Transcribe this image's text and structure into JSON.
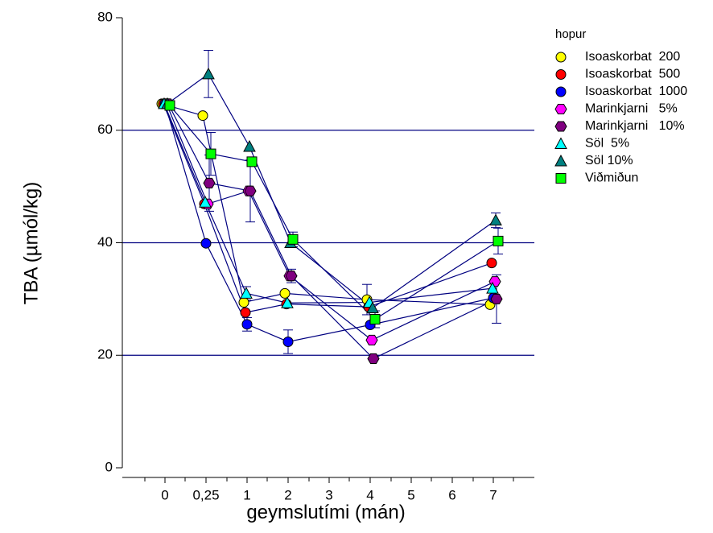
{
  "chart_data": {
    "type": "scatter",
    "xlabel": "geymslutími (mán)",
    "ylabel": "TBA (µmól/kg)",
    "ylim": [
      0,
      80
    ],
    "y_ticks": [
      0,
      20,
      40,
      60,
      80
    ],
    "grid_y": [
      20,
      40,
      60
    ],
    "x_tick_labels": [
      "0",
      "0,25",
      "1",
      "2",
      "3",
      "4",
      "5",
      "6",
      "7"
    ],
    "legend_title": "hopur",
    "legend_position": "right",
    "series": [
      {
        "name": "Isoaskorbat  200",
        "marker": "circle",
        "color": "#ffff00",
        "points": [
          {
            "x": "0",
            "y": 64.7
          },
          {
            "x": "0,25",
            "y": 62.6
          },
          {
            "x": "1",
            "y": 29.4
          },
          {
            "x": "2",
            "y": 31.0
          },
          {
            "x": "4",
            "y": 29.9
          },
          {
            "x": "7",
            "y": 29.0
          }
        ],
        "err": [
          0,
          0,
          0,
          0,
          2.7,
          0
        ]
      },
      {
        "name": "Isoaskorbat  500",
        "marker": "circle",
        "color": "#ff0000",
        "points": [
          {
            "x": "0",
            "y": 64.7
          },
          {
            "x": "0,25",
            "y": 46.9
          },
          {
            "x": "1",
            "y": 27.6
          },
          {
            "x": "2",
            "y": 29.1
          },
          {
            "x": "4",
            "y": 28.6
          },
          {
            "x": "7",
            "y": 36.4
          }
        ],
        "err": [
          0,
          0,
          0,
          0,
          0,
          0
        ]
      },
      {
        "name": "Isoaskorbat  1000",
        "marker": "circle",
        "color": "#0000ff",
        "points": [
          {
            "x": "0",
            "y": 64.7
          },
          {
            "x": "0,25",
            "y": 39.9
          },
          {
            "x": "1",
            "y": 25.5
          },
          {
            "x": "2",
            "y": 22.4
          },
          {
            "x": "4",
            "y": 25.4
          },
          {
            "x": "7",
            "y": 30.2
          }
        ],
        "err": [
          0,
          0,
          1.2,
          2.1,
          0,
          0
        ]
      },
      {
        "name": "Marinkjarni   5%",
        "marker": "hexagon",
        "color": "#ff00ff",
        "points": [
          {
            "x": "0",
            "y": 64.7
          },
          {
            "x": "0,25",
            "y": 46.9
          },
          {
            "x": "1",
            "y": 49.2
          },
          {
            "x": "2",
            "y": 34.1
          },
          {
            "x": "4",
            "y": 22.7
          },
          {
            "x": "7",
            "y": 33.1
          }
        ],
        "err": [
          0,
          0,
          0,
          0,
          0,
          0
        ]
      },
      {
        "name": "Marinkjarni   10%",
        "marker": "hexagon",
        "color": "#800080",
        "points": [
          {
            "x": "0",
            "y": 64.7
          },
          {
            "x": "0,25",
            "y": 50.6
          },
          {
            "x": "1",
            "y": 49.2
          },
          {
            "x": "2",
            "y": 34.1
          },
          {
            "x": "4",
            "y": 19.4
          },
          {
            "x": "7",
            "y": 30.0
          }
        ],
        "err": [
          0,
          5.0,
          5.5,
          1.2,
          0,
          4.3
        ]
      },
      {
        "name": "Söl  5%",
        "marker": "triangle",
        "color": "#00ffff",
        "points": [
          {
            "x": "0",
            "y": 64.7
          },
          {
            "x": "0,25",
            "y": 47.2
          },
          {
            "x": "1",
            "y": 31.0
          },
          {
            "x": "2",
            "y": 29.3
          },
          {
            "x": "4",
            "y": 29.4
          },
          {
            "x": "7",
            "y": 31.9
          }
        ],
        "err": [
          0,
          0,
          1.2,
          0,
          0,
          0
        ]
      },
      {
        "name": "Söl 10%",
        "marker": "triangle",
        "color": "#008080",
        "points": [
          {
            "x": "0",
            "y": 64.7
          },
          {
            "x": "0,25",
            "y": 70.0
          },
          {
            "x": "1",
            "y": 57.1
          },
          {
            "x": "2",
            "y": 40.0
          },
          {
            "x": "4",
            "y": 28.4
          },
          {
            "x": "7",
            "y": 44.0
          }
        ],
        "err": [
          0,
          4.2,
          0,
          0,
          0,
          1.3
        ]
      },
      {
        "name": "Viðmiðun",
        "marker": "square",
        "color": "#00ff00",
        "points": [
          {
            "x": "0",
            "y": 64.4
          },
          {
            "x": "0,25",
            "y": 55.8
          },
          {
            "x": "1",
            "y": 54.4
          },
          {
            "x": "2",
            "y": 40.6
          },
          {
            "x": "4",
            "y": 26.4
          },
          {
            "x": "7",
            "y": 40.3
          }
        ],
        "err": [
          0,
          3.8,
          0,
          1.3,
          1.5,
          2.3
        ]
      }
    ]
  }
}
